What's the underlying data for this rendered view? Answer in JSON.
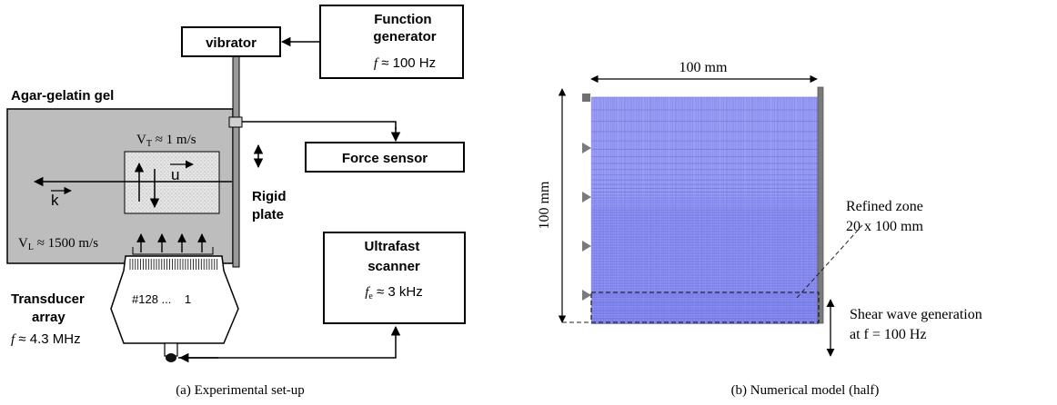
{
  "panel_a": {
    "caption": "(a) Experimental set-up",
    "gel_label": "Agar-gelatin gel",
    "vt_label": "V",
    "vt_sub": "T",
    "vt_value": " ≈ 1 m/s",
    "vl_label": "V",
    "vl_sub": "L",
    "vl_value": " ≈ 1500 m/s",
    "u_label": "u",
    "k_label": "k",
    "rigid_plate_line1": "Rigid",
    "rigid_plate_line2": "plate",
    "vibrator_label": "vibrator",
    "function_generator_line1": "Function",
    "function_generator_line2": "generator",
    "function_generator_freq_var": "f",
    "function_generator_freq_value": " ≈ 100 Hz",
    "force_sensor_label": "Force sensor",
    "scanner_line1": "Ultrafast",
    "scanner_line2": "scanner",
    "scanner_freq_var": "f",
    "scanner_freq_sub": "e",
    "scanner_freq_value": " ≈ 3 kHz",
    "transducer_line1": "Transducer",
    "transducer_line2": "array",
    "transducer_freq_var": "f",
    "transducer_freq_value": " ≈ 4.3 MHz",
    "element_label": "#128 ...    1"
  },
  "panel_b": {
    "caption": "(b) Numerical model (half)",
    "top_dim_label": "100 mm",
    "left_dim_label": "100 mm",
    "refined_line1": "Refined zone",
    "refined_line2": "20 x 100 mm",
    "shear_line1": "Shear wave generation",
    "shear_line2": "at f = 100 Hz",
    "mesh_fill": "#9a9ef2",
    "mesh_line": "#6f73e6"
  }
}
